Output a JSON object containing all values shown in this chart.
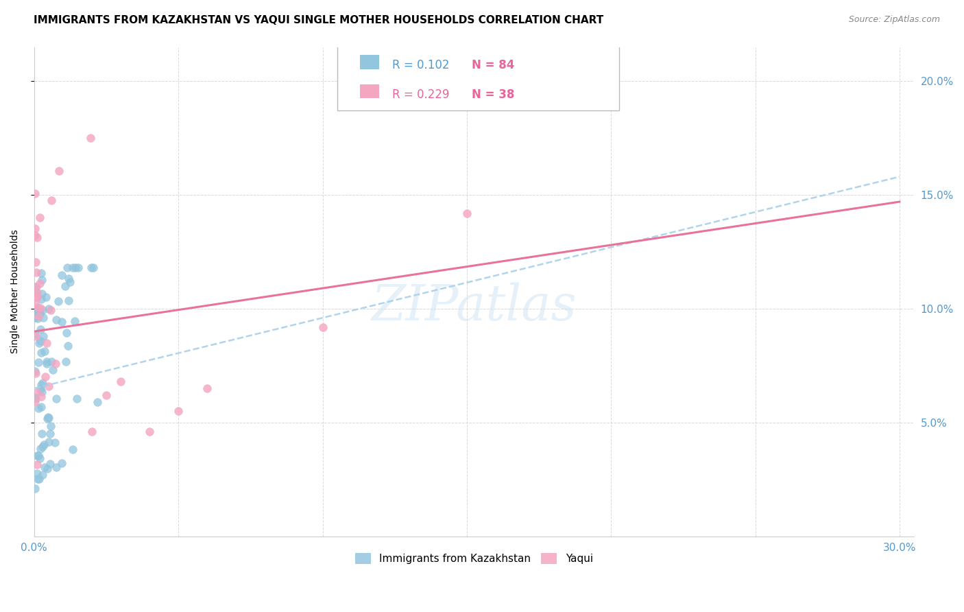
{
  "title": "IMMIGRANTS FROM KAZAKHSTAN VS YAQUI SINGLE MOTHER HOUSEHOLDS CORRELATION CHART",
  "source": "Source: ZipAtlas.com",
  "ylabel": "Single Mother Households",
  "xlim": [
    0,
    0.305
  ],
  "ylim": [
    0,
    0.215
  ],
  "blue_color": "#92c5de",
  "pink_color": "#f4a5c0",
  "blue_line_color": "#a8d0e8",
  "pink_line_color": "#e8729a",
  "tick_color": "#5599cc",
  "watermark": "ZIPatlas",
  "legend_r1": "R = 0.102",
  "legend_n1": "N = 84",
  "legend_r2": "R = 0.229",
  "legend_n2": "N = 38",
  "blue_line_y_start": 0.065,
  "blue_line_y_end": 0.158,
  "pink_line_y_start": 0.09,
  "pink_line_y_end": 0.147
}
